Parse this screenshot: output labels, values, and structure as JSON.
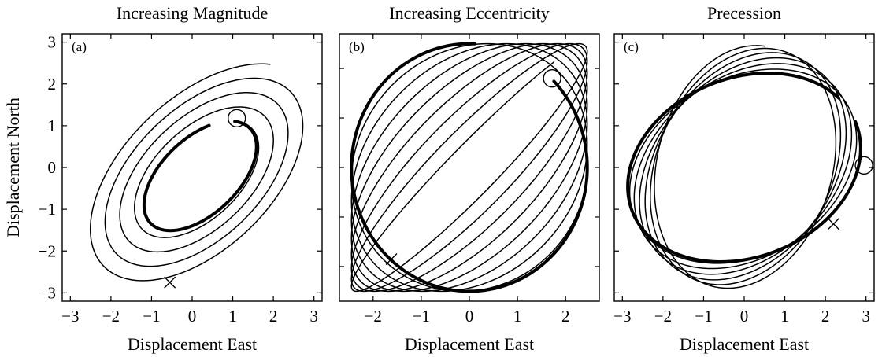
{
  "chart_data": [
    {
      "type": "line",
      "panel_label": "(a)",
      "title": "Increasing Magnitude",
      "xlabel": "Displacement East",
      "ylabel": "Displacement North",
      "xlim": [
        -3.2,
        3.2
      ],
      "ylim": [
        -3.2,
        3.2
      ],
      "xticks": [
        -3,
        -2,
        -1,
        0,
        1,
        2,
        3
      ],
      "yticks": [
        -3,
        -2,
        -1,
        0,
        1,
        2,
        3
      ],
      "series": [
        {
          "style": "thin",
          "description_curve": "inward elliptical spiral",
          "center": [
            0.2,
            -0.2
          ],
          "tilt_deg": 42,
          "semi_major_start": 3.4,
          "semi_major_end": 1.67,
          "semi_minor_start": 1.92,
          "semi_minor_end": 0.92,
          "start_point": [
            -0.55,
            -2.75
          ],
          "end_point": [
            1.1,
            1.18
          ],
          "turns": 4
        },
        {
          "style": "bold",
          "center": [
            0.2,
            -0.2
          ],
          "tilt_deg": 42,
          "semi_major": 1.67,
          "semi_minor": 0.92,
          "end_point": [
            1.1,
            1.18
          ],
          "arc_fraction": 0.92
        }
      ],
      "markers": {
        "start": {
          "symbol": "x",
          "x": -0.55,
          "y": -2.75
        },
        "end": {
          "symbol": "o",
          "x": 1.1,
          "y": 1.18
        }
      }
    },
    {
      "type": "line",
      "panel_label": "(b)",
      "title": "Increasing Eccentricity",
      "xlabel": "Displacement East",
      "xlim": [
        -2.7,
        2.7
      ],
      "ylim": [
        -2.7,
        2.7
      ],
      "xticks": [
        -2,
        -1,
        0,
        1,
        2
      ],
      "yticks": [
        -2,
        -1,
        0,
        1,
        2
      ],
      "series": [
        {
          "style": "thin",
          "description_curve": "ellipse of increasing eccentricity",
          "center": [
            0,
            0
          ],
          "start_point": [
            -1.62,
            -1.85
          ],
          "end_point": [
            1.72,
            1.8
          ],
          "turns": 8
        },
        {
          "style": "bold",
          "center": [
            0,
            0
          ],
          "radius_x": 2.45,
          "radius_y": 2.5,
          "end_point": [
            1.72,
            1.8
          ],
          "arc_fraction": 0.88
        }
      ],
      "markers": {
        "start": {
          "symbol": "x",
          "x": -1.62,
          "y": -1.85
        },
        "end": {
          "symbol": "o",
          "x": 1.72,
          "y": 1.8
        }
      }
    },
    {
      "type": "line",
      "panel_label": "(c)",
      "title": "Precession",
      "xlabel": "Displacement East",
      "xlim": [
        -3.2,
        3.2
      ],
      "ylim": [
        -3.2,
        3.2
      ],
      "xticks": [
        -3,
        -2,
        -1,
        0,
        1,
        2,
        3
      ],
      "yticks": [
        -3,
        -2,
        -1,
        0,
        1,
        2,
        3
      ],
      "series": [
        {
          "style": "thin",
          "description_curve": "precessing ellipse",
          "center": [
            0,
            0
          ],
          "semi_major": 2.95,
          "semi_minor": 2.15,
          "tilt_start_deg": 78,
          "tilt_end_deg": 20,
          "start_point": [
            2.2,
            -1.35
          ],
          "end_point": [
            2.95,
            0.05
          ],
          "turns": 6
        },
        {
          "style": "bold",
          "center": [
            0,
            0
          ],
          "semi_major": 2.95,
          "semi_minor": 2.15,
          "tilt_deg": 20,
          "end_point": [
            2.95,
            0.05
          ],
          "arc_fraction": 0.95
        }
      ],
      "markers": {
        "start": {
          "symbol": "x",
          "x": 2.2,
          "y": -1.35
        },
        "end": {
          "symbol": "o",
          "x": 2.95,
          "y": 0.05
        }
      }
    }
  ]
}
